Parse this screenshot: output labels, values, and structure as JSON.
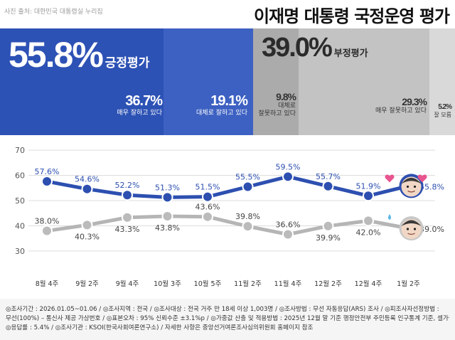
{
  "header": {
    "source": "사진 출처: 대한민국 대통령실 누리집",
    "title": "이재명 대통령 국정운영 평가"
  },
  "colors": {
    "positive_line": "#2d4fb0",
    "negative_line": "#b5b5b5",
    "positive_band": "#2d52b5",
    "negative_band": "#c3c3c3"
  },
  "summary": {
    "positive": {
      "value": "55.8%",
      "label": "긍정평가"
    },
    "negative": {
      "value": "39.0%",
      "label": "부정평가"
    },
    "segments": [
      {
        "value": "36.7%",
        "label_lines": [
          "매우 잘하고 있다"
        ]
      },
      {
        "value": "19.1%",
        "label_lines": [
          "대체로 잘하고 있다"
        ]
      },
      {
        "value": "9.8%",
        "label_lines": [
          "대체로",
          "잘못하고 있다"
        ]
      },
      {
        "value": "29.3%",
        "label_lines": [
          "매우 잘못하고 있다"
        ]
      },
      {
        "value": "5.2%",
        "label_lines": [
          "잘 모름"
        ]
      }
    ]
  },
  "chart_data": {
    "type": "line",
    "title": "이재명 대통령 국정운영 평가",
    "categories": [
      "8월 4주",
      "9월 2주",
      "9월 4주",
      "10월 3주",
      "10월 5주",
      "11월 2주",
      "11월 4주",
      "12월 2주",
      "12월 4주",
      "1월 2주"
    ],
    "series": [
      {
        "name": "긍정평가",
        "values": [
          57.6,
          54.6,
          52.2,
          51.3,
          51.5,
          55.5,
          59.5,
          55.7,
          51.9,
          55.8
        ],
        "labels": [
          "57.6%",
          "54.6%",
          "52.2%",
          "51.3%",
          "51.5%",
          "55.5%",
          "59.5%",
          "55.7%",
          "51.9%",
          "55.8%"
        ]
      },
      {
        "name": "부정평가",
        "values": [
          38.0,
          40.3,
          43.3,
          43.8,
          43.6,
          39.8,
          36.6,
          39.9,
          42.0,
          39.0
        ],
        "labels": [
          "38.0%",
          "40.3%",
          "43.3%",
          "43.8%",
          "43.6%",
          "39.8%",
          "36.6%",
          "39.9%",
          "42.0%",
          "39.0%"
        ]
      }
    ],
    "yticks": [
      30,
      40,
      50,
      60,
      70
    ],
    "ylim": [
      28,
      72
    ],
    "grid": true,
    "xlabel": "",
    "ylabel": ""
  },
  "footer": {
    "lines": [
      "◎조사기간 : 2026.01.05~01.06 / ◎조사지역 : 전국 / ◎조사대상 : 전국 거주 만 18세 이상 1,003명 / ◎조사방법 : 무선 자동응답(ARS) 조사 / ◎피조사자선정방법 :",
      "무선(100%) – 통신사 제공 가상번호 / ◎표본오차 : 95% 신뢰수준 ±3.1%p / ◎가중값 산출 및 적용방법 : 2025년 12월 말 기준 행정안전부 주민등록 인구통계 기준, 셀가중",
      "◎응답률 : 5.4% / ◎조사기관 : KSOI(한국사회여론연구소) / 자세한 사항은 중앙선거여론조사심의위원회 홈페이지 참조"
    ]
  }
}
